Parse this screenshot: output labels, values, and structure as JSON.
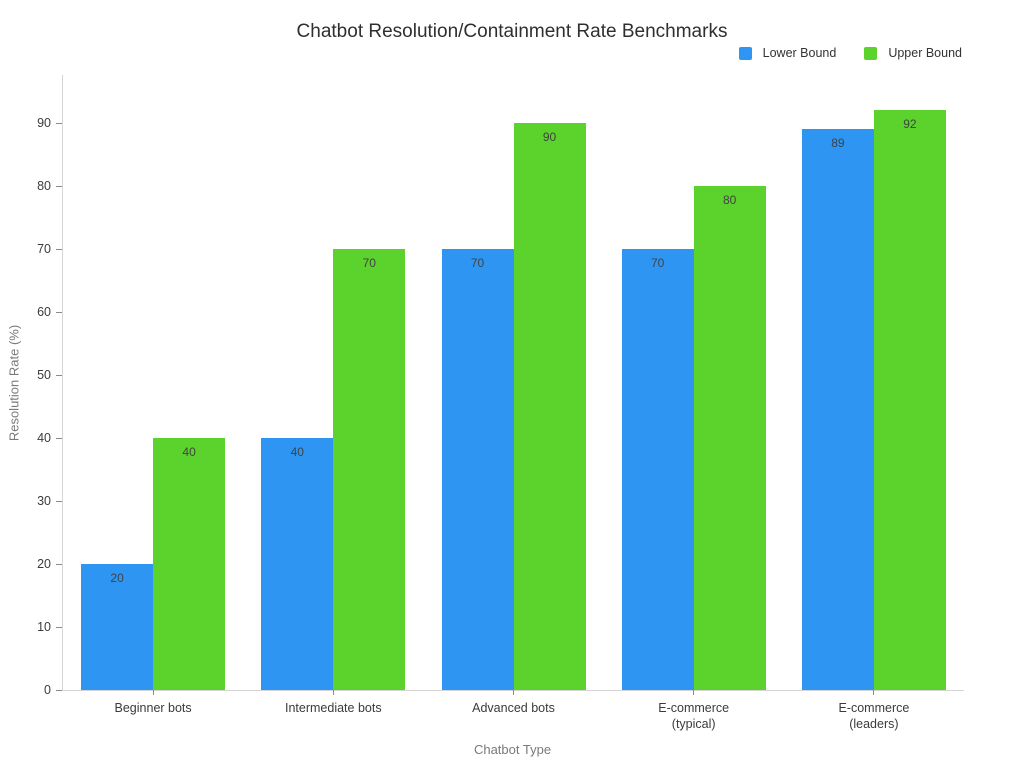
{
  "chart": {
    "title": "Chatbot Resolution/Containment Rate Benchmarks",
    "xlabel": "Chatbot Type",
    "ylabel": "Resolution Rate (%)"
  },
  "chart_data": {
    "type": "bar",
    "title": "Chatbot Resolution/Containment Rate Benchmarks",
    "xlabel": "Chatbot Type",
    "ylabel": "Resolution Rate (%)",
    "categories": [
      "Beginner bots",
      "Intermediate bots",
      "Advanced bots",
      "E-commerce (typical)",
      "E-commerce (leaders)"
    ],
    "category_label_lines": [
      [
        "Beginner bots"
      ],
      [
        "Intermediate bots"
      ],
      [
        "Advanced bots"
      ],
      [
        "E-commerce",
        "(typical)"
      ],
      [
        "E-commerce",
        "(leaders)"
      ]
    ],
    "series": [
      {
        "name": "Lower Bound",
        "color": "#2E96F2",
        "values": [
          20,
          40,
          70,
          70,
          89
        ]
      },
      {
        "name": "Upper Bound",
        "color": "#5CD32C",
        "values": [
          40,
          70,
          90,
          80,
          92
        ]
      }
    ],
    "yticks": [
      0,
      10,
      20,
      30,
      40,
      50,
      60,
      70,
      80,
      90
    ],
    "ylim": [
      0,
      97.6
    ],
    "grid": false,
    "legend_position": "top-right",
    "bar_value_labels": true
  }
}
